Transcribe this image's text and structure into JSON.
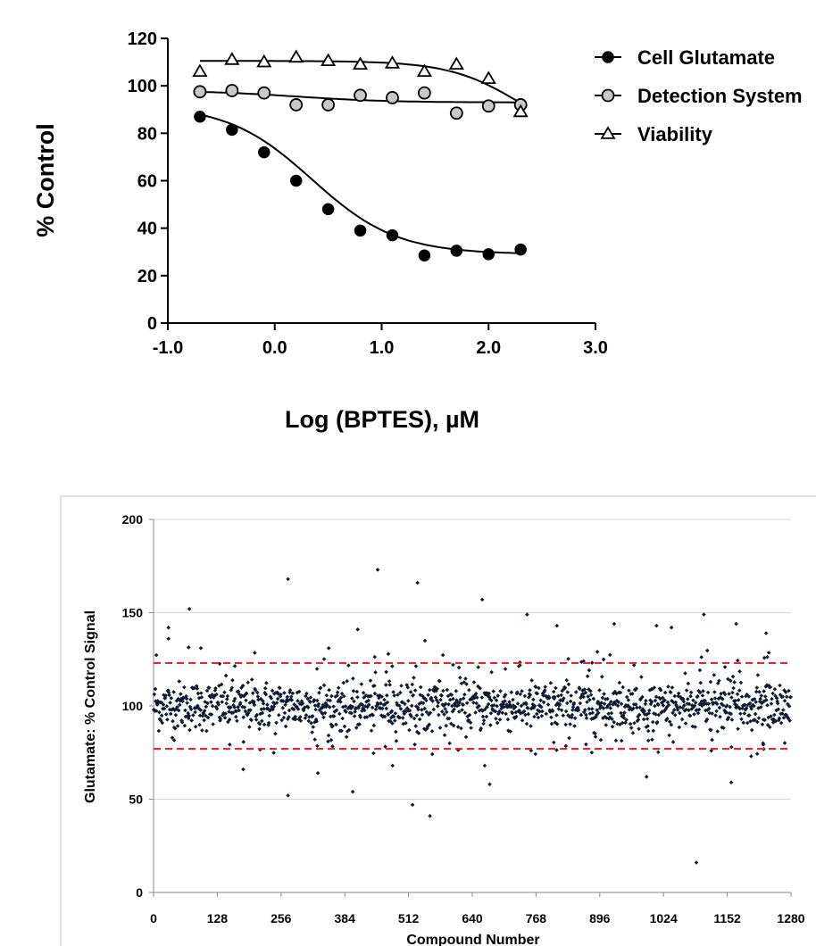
{
  "chart_data": [
    {
      "type": "line",
      "xlabel": "Log (BPTES), µM",
      "ylabel": "% Control",
      "xlim": [
        -1.0,
        3.0
      ],
      "ylim": [
        0,
        120
      ],
      "xticks": [
        "-1.0",
        "0.0",
        "1.0",
        "2.0",
        "3.0"
      ],
      "yticks": [
        "0",
        "20",
        "40",
        "60",
        "80",
        "100",
        "120"
      ],
      "legend_position": "right",
      "series": [
        {
          "name": "Cell Glutamate",
          "marker": "filled-circle",
          "x": [
            -0.7,
            -0.4,
            -0.1,
            0.2,
            0.5,
            0.8,
            1.1,
            1.4,
            1.7,
            2.0,
            2.3
          ],
          "y": [
            87,
            81.5,
            72,
            60,
            48,
            39,
            37,
            28.5,
            30.5,
            29,
            31
          ],
          "fit": {
            "top": 92,
            "bottom": 29,
            "log_ic50": 0.35,
            "hill": 1.1
          }
        },
        {
          "name": "Detection System",
          "marker": "gray-circle",
          "x": [
            -0.7,
            -0.4,
            -0.1,
            0.2,
            0.5,
            0.8,
            1.1,
            1.4,
            1.7,
            2.0,
            2.3
          ],
          "y": [
            97.5,
            98,
            97,
            92,
            92,
            96,
            95,
            97,
            88.5,
            91.5,
            92
          ],
          "fit": {
            "top": 98,
            "bottom": 93,
            "log_ic50": 0.2,
            "hill": 1
          }
        },
        {
          "name": "Viability",
          "marker": "open-triangle",
          "x": [
            -0.7,
            -0.4,
            -0.1,
            0.2,
            0.5,
            0.8,
            1.1,
            1.4,
            1.7,
            2.0,
            2.3
          ],
          "y": [
            106,
            111,
            110,
            112,
            110.5,
            109,
            109.5,
            106,
            109,
            103,
            89
          ],
          "fit": {
            "top": 110.5,
            "bottom": 75,
            "log_ic50": 2.3,
            "hill": 1.3
          }
        }
      ]
    },
    {
      "type": "scatter",
      "xlabel": "Compound Number",
      "ylabel": "Glutamate:  % Control Signal",
      "xlim": [
        0,
        1280
      ],
      "ylim": [
        0,
        200
      ],
      "xticks": [
        "0",
        "128",
        "256",
        "384",
        "512",
        "640",
        "768",
        "896",
        "1024",
        "1152",
        "1280"
      ],
      "yticks": [
        "0",
        "50",
        "100",
        "150",
        "200"
      ],
      "grid": true,
      "threshold_lines": [
        123,
        77
      ],
      "threshold_color": "#e8262b",
      "point_count": 1280,
      "center_value": 100,
      "spread_sd": 6.5,
      "outliers": [
        {
          "x": 30,
          "y": 142
        },
        {
          "x": 30,
          "y": 136
        },
        {
          "x": 72,
          "y": 152
        },
        {
          "x": 95,
          "y": 131
        },
        {
          "x": 180,
          "y": 66
        },
        {
          "x": 270,
          "y": 168
        },
        {
          "x": 270,
          "y": 52
        },
        {
          "x": 330,
          "y": 64
        },
        {
          "x": 400,
          "y": 54
        },
        {
          "x": 410,
          "y": 141
        },
        {
          "x": 450,
          "y": 173
        },
        {
          "x": 480,
          "y": 68
        },
        {
          "x": 520,
          "y": 47
        },
        {
          "x": 530,
          "y": 166
        },
        {
          "x": 545,
          "y": 135
        },
        {
          "x": 555,
          "y": 41
        },
        {
          "x": 660,
          "y": 157
        },
        {
          "x": 665,
          "y": 68
        },
        {
          "x": 675,
          "y": 58
        },
        {
          "x": 750,
          "y": 149
        },
        {
          "x": 810,
          "y": 143
        },
        {
          "x": 880,
          "y": 75
        },
        {
          "x": 925,
          "y": 144
        },
        {
          "x": 990,
          "y": 62
        },
        {
          "x": 1010,
          "y": 143
        },
        {
          "x": 1040,
          "y": 142
        },
        {
          "x": 1090,
          "y": 16
        },
        {
          "x": 1105,
          "y": 149
        },
        {
          "x": 1120,
          "y": 76
        },
        {
          "x": 1160,
          "y": 59
        },
        {
          "x": 1170,
          "y": 144
        },
        {
          "x": 1200,
          "y": 73
        },
        {
          "x": 1230,
          "y": 139
        }
      ]
    }
  ],
  "colors": {
    "axis": "#000000",
    "marker_fill_gray": "#c8c8c8",
    "scatter_point": "#0d1b33",
    "grid": "#d6d6d6",
    "threshold": "#e8262b"
  }
}
